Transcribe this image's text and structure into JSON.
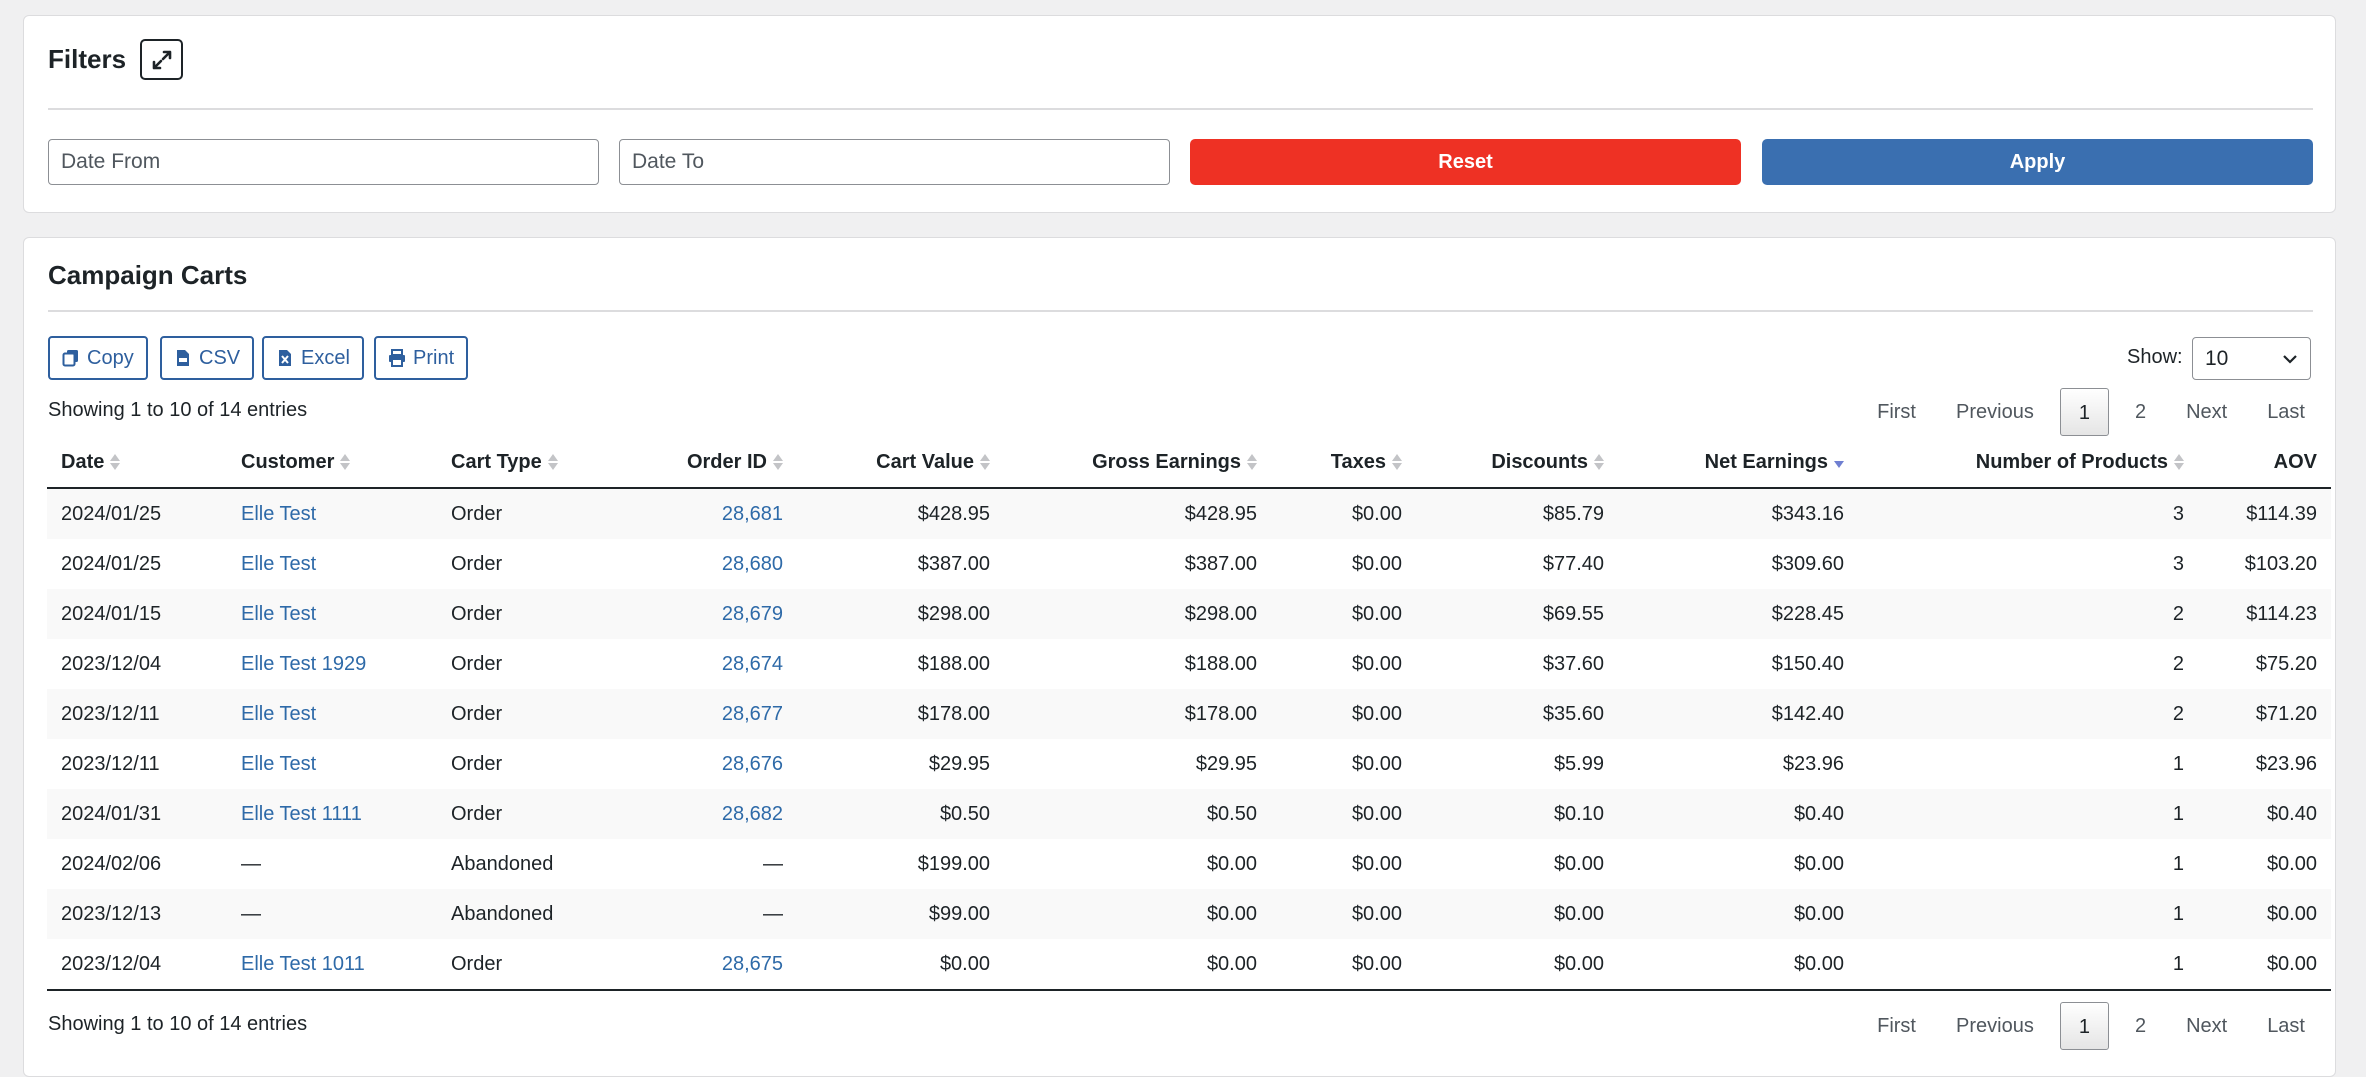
{
  "filters": {
    "title": "Filters",
    "date_from_placeholder": "Date From",
    "date_to_placeholder": "Date To",
    "reset_label": "Reset",
    "apply_label": "Apply"
  },
  "campaign_carts": {
    "title": "Campaign Carts",
    "export_buttons": [
      {
        "label": "Copy",
        "icon": "copy-icon"
      },
      {
        "label": "CSV",
        "icon": "csv-file-icon"
      },
      {
        "label": "Excel",
        "icon": "excel-file-icon"
      },
      {
        "label": "Print",
        "icon": "printer-icon"
      }
    ],
    "show_label": "Show:",
    "show_value": "10",
    "info_top": "Showing 1 to 10 of 14 entries",
    "info_bottom": "Showing 1 to 10 of 14 entries",
    "pagination": {
      "first": "First",
      "previous": "Previous",
      "pages": [
        "1",
        "2"
      ],
      "current": "1",
      "next": "Next",
      "last": "Last"
    },
    "columns": [
      "Date",
      "Customer",
      "Cart Type",
      "Order ID",
      "Cart Value",
      "Gross Earnings",
      "Taxes",
      "Discounts",
      "Net Earnings",
      "Number of Products",
      "AOV"
    ],
    "sorted_column": "Net Earnings",
    "sort_direction": "descending",
    "rows": [
      [
        "2024/01/25",
        "Elle Test",
        "Order",
        "28,681",
        "$428.95",
        "$428.95",
        "$0.00",
        "$85.79",
        "$343.16",
        "3",
        "$114.39"
      ],
      [
        "2024/01/25",
        "Elle Test",
        "Order",
        "28,680",
        "$387.00",
        "$387.00",
        "$0.00",
        "$77.40",
        "$309.60",
        "3",
        "$103.20"
      ],
      [
        "2024/01/15",
        "Elle Test",
        "Order",
        "28,679",
        "$298.00",
        "$298.00",
        "$0.00",
        "$69.55",
        "$228.45",
        "2",
        "$114.23"
      ],
      [
        "2023/12/04",
        "Elle Test 1929",
        "Order",
        "28,674",
        "$188.00",
        "$188.00",
        "$0.00",
        "$37.60",
        "$150.40",
        "2",
        "$75.20"
      ],
      [
        "2023/12/11",
        "Elle Test",
        "Order",
        "28,677",
        "$178.00",
        "$178.00",
        "$0.00",
        "$35.60",
        "$142.40",
        "2",
        "$71.20"
      ],
      [
        "2023/12/11",
        "Elle Test",
        "Order",
        "28,676",
        "$29.95",
        "$29.95",
        "$0.00",
        "$5.99",
        "$23.96",
        "1",
        "$23.96"
      ],
      [
        "2024/01/31",
        "Elle Test 1111",
        "Order",
        "28,682",
        "$0.50",
        "$0.50",
        "$0.00",
        "$0.10",
        "$0.40",
        "1",
        "$0.40"
      ],
      [
        "2024/02/06",
        "—",
        "Abandoned",
        "—",
        "$199.00",
        "$0.00",
        "$0.00",
        "$0.00",
        "$0.00",
        "1",
        "$0.00"
      ],
      [
        "2023/12/13",
        "—",
        "Abandoned",
        "—",
        "$99.00",
        "$0.00",
        "$0.00",
        "$0.00",
        "$0.00",
        "1",
        "$0.00"
      ],
      [
        "2023/12/04",
        "Elle Test 1011",
        "Order",
        "28,675",
        "$0.00",
        "$0.00",
        "$0.00",
        "$0.00",
        "$0.00",
        "1",
        "$0.00"
      ]
    ]
  },
  "colors": {
    "reset": "#ee3124",
    "apply": "#3a6fb0",
    "link": "#2e6aa8"
  }
}
